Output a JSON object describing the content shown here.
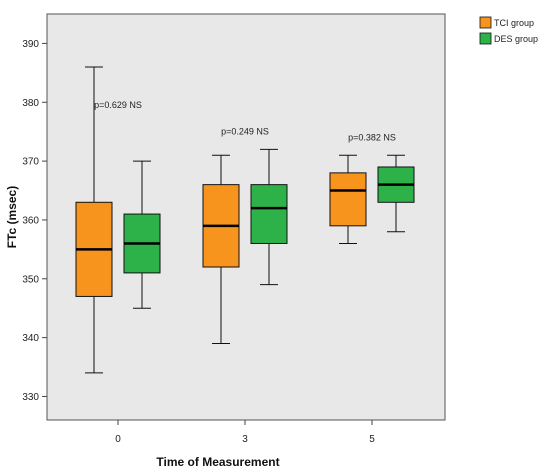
{
  "chart_data": {
    "type": "boxplot",
    "xlabel": "Time of Measurement",
    "ylabel": "FTc (msec)",
    "ylim": [
      326,
      395
    ],
    "yticks": [
      330,
      340,
      350,
      360,
      370,
      380,
      390
    ],
    "categories": [
      "0",
      "3",
      "5"
    ],
    "grid": false,
    "legend_position": "top-right, outside plot",
    "series": [
      {
        "name": "TCI group",
        "color": "#F7941D",
        "boxes": [
          {
            "min": 334,
            "q1": 347,
            "median": 355,
            "q3": 363,
            "max": 386
          },
          {
            "min": 339,
            "q1": 352,
            "median": 359,
            "q3": 366,
            "max": 371
          },
          {
            "min": 356,
            "q1": 359,
            "median": 365,
            "q3": 368,
            "max": 371
          }
        ]
      },
      {
        "name": "DES group",
        "color": "#2DB24A",
        "boxes": [
          {
            "min": 345,
            "q1": 351,
            "median": 356,
            "q3": 361,
            "max": 370
          },
          {
            "min": 349,
            "q1": 356,
            "median": 362,
            "q3": 366,
            "max": 372
          },
          {
            "min": 358,
            "q1": 363,
            "median": 366,
            "q3": 369,
            "max": 371
          }
        ]
      }
    ],
    "annotations": [
      {
        "category": "0",
        "text": "p=0.629 NS",
        "y": 379
      },
      {
        "category": "3",
        "text": "p=0.249 NS",
        "y": 374.5
      },
      {
        "category": "5",
        "text": "p=0.382 NS",
        "y": 373.5
      }
    ]
  }
}
